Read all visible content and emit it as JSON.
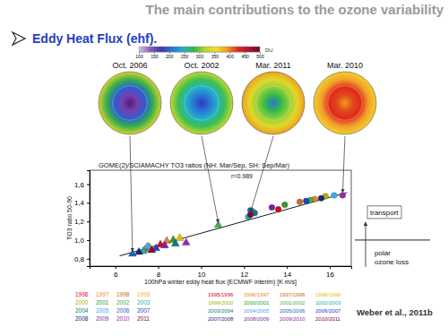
{
  "slide_title": "The main contributions to the ozone variability",
  "bullet": "Eddy Heat Flux (ehf).",
  "source": "Weber et al., 2011b",
  "colorbar": {
    "range": [
      100,
      500
    ],
    "ticks": [
      100,
      150,
      200,
      250,
      300,
      350,
      400,
      450,
      500
    ],
    "unit": "DU"
  },
  "maps": [
    {
      "label": "Oct. 2006",
      "target": [
        6.8,
        0.85
      ]
    },
    {
      "label": "Oct. 2002",
      "target": [
        10.8,
        1.16
      ]
    },
    {
      "label": "Mar. 2011",
      "target": [
        12.3,
        1.27
      ]
    },
    {
      "label": "Mar. 2010",
      "target": [
        16.6,
        1.48
      ]
    }
  ],
  "chart_data": {
    "type": "scatter",
    "title": "GOME(2)/SCIAMACHY TO3 ratios (NH: Mar/Sep, SH: Sep/Mar)",
    "subtitle": "r=0.989",
    "x_label": "100hPa winter eddy heat flux (ECMWF interim) [K m/s]",
    "y_label": "TO3 ratio 50-90",
    "xlim": [
      4.8,
      17
    ],
    "xticks": [
      6,
      8,
      10,
      12,
      14,
      16
    ],
    "ylim": [
      0.72,
      1.75
    ],
    "yticks": [
      {
        "value": 0.8,
        "label": "0,8"
      },
      {
        "value": 1.0,
        "label": "1,0"
      },
      {
        "value": 1.2,
        "label": "1,2"
      },
      {
        "value": 1.4,
        "label": "1,4"
      },
      {
        "value": 1.6,
        "label": "1,6"
      }
    ],
    "legend": "bottom",
    "reference_line": {
      "y": 1.0
    },
    "annotations": {
      "above": "transport",
      "below": [
        "polar",
        "ozone loss"
      ]
    },
    "series": [
      {
        "name": "1996",
        "color": "#e3001b",
        "marker": "triangle",
        "x": [
          8.1
        ],
        "values": [
          0.95
        ]
      },
      {
        "name": "1997",
        "color": "#f08030",
        "marker": "triangle",
        "x": [
          8.4
        ],
        "values": [
          0.99
        ]
      },
      {
        "name": "1998",
        "color": "#d2691e",
        "marker": "triangle",
        "x": [
          7.4
        ],
        "values": [
          0.9
        ]
      },
      {
        "name": "1999",
        "color": "#e8c000",
        "marker": "triangle",
        "x": [
          9.0
        ],
        "values": [
          1.02
        ]
      },
      {
        "name": "2000",
        "color": "#a8b400",
        "marker": "triangle",
        "x": [
          7.6
        ],
        "values": [
          0.92
        ]
      },
      {
        "name": "2001",
        "color": "#2e9e2e",
        "marker": "triangle",
        "x": [
          8.7
        ],
        "values": [
          1.0
        ]
      },
      {
        "name": "2002",
        "color": "#3cb44b",
        "marker": "triangle",
        "x": [
          10.8
        ],
        "values": [
          1.16
        ]
      },
      {
        "name": "2003",
        "color": "#20b2aa",
        "marker": "triangle",
        "x": [
          7.3
        ],
        "values": [
          0.88
        ]
      },
      {
        "name": "2004",
        "color": "#008080",
        "marker": "triangle",
        "x": [
          8.8
        ],
        "values": [
          0.96
        ]
      },
      {
        "name": "2005",
        "color": "#3fa9f5",
        "marker": "triangle",
        "x": [
          7.5
        ],
        "values": [
          0.93
        ]
      },
      {
        "name": "2006",
        "color": "#1e64c8",
        "marker": "triangle",
        "x": [
          6.8
        ],
        "values": [
          0.85
        ]
      },
      {
        "name": "2007",
        "color": "#2040d0",
        "marker": "triangle",
        "x": [
          7.9
        ],
        "values": [
          0.91
        ]
      },
      {
        "name": "2008",
        "color": "#1a237e",
        "marker": "triangle",
        "x": [
          7.1
        ],
        "values": [
          0.87
        ]
      },
      {
        "name": "2009",
        "color": "#7b1fa2",
        "marker": "triangle",
        "x": [
          8.3
        ],
        "values": [
          0.94
        ]
      },
      {
        "name": "2010",
        "color": "#9c27b0",
        "marker": "triangle",
        "x": [
          9.3
        ],
        "values": [
          0.97
        ]
      },
      {
        "name": "2011",
        "color": "#8b0045",
        "marker": "triangle",
        "x": [
          7.7
        ],
        "values": [
          0.89
        ]
      },
      {
        "name": "1995/1996",
        "color": "#e3001b",
        "marker": "circle",
        "x": [
          13.6
        ],
        "values": [
          1.33
        ]
      },
      {
        "name": "1996/1997",
        "color": "#f08030",
        "marker": "circle",
        "x": [
          15.3
        ],
        "values": [
          1.44
        ]
      },
      {
        "name": "1997/1998",
        "color": "#d2691e",
        "marker": "circle",
        "x": [
          14.6
        ],
        "values": [
          1.41
        ]
      },
      {
        "name": "1998/1999",
        "color": "#e8c000",
        "marker": "circle",
        "x": [
          12.4
        ],
        "values": [
          1.31
        ]
      },
      {
        "name": "1999/2000",
        "color": "#a8b400",
        "marker": "circle",
        "x": [
          15.8
        ],
        "values": [
          1.47
        ]
      },
      {
        "name": "2000/2001",
        "color": "#2e9e2e",
        "marker": "circle",
        "x": [
          13.9
        ],
        "values": [
          1.38
        ]
      },
      {
        "name": "2001/2002",
        "color": "#3cb44b",
        "marker": "circle",
        "x": [
          15.1
        ],
        "values": [
          1.43
        ]
      },
      {
        "name": "2002/2003",
        "color": "#20b2aa",
        "marker": "circle",
        "x": [
          12.2
        ],
        "values": [
          1.25
        ]
      },
      {
        "name": "2003/2004",
        "color": "#008080",
        "marker": "circle",
        "x": [
          12.5
        ],
        "values": [
          1.29
        ]
      },
      {
        "name": "2004/2005",
        "color": "#3fa9f5",
        "marker": "circle",
        "x": [
          16.2
        ],
        "values": [
          1.48
        ]
      },
      {
        "name": "2005/2006",
        "color": "#1e64c8",
        "marker": "circle",
        "x": [
          12.3
        ],
        "values": [
          1.32
        ]
      },
      {
        "name": "2006/2007",
        "color": "#2040d0",
        "marker": "circle",
        "x": [
          14.9
        ],
        "values": [
          1.42
        ]
      },
      {
        "name": "2007/2008",
        "color": "#1a237e",
        "marker": "circle",
        "x": [
          15.6
        ],
        "values": [
          1.45
        ]
      },
      {
        "name": "2008/2009",
        "color": "#7b1fa2",
        "marker": "circle",
        "x": [
          13.3
        ],
        "values": [
          1.35
        ]
      },
      {
        "name": "2009/2010",
        "color": "#9c27b0",
        "marker": "circle",
        "x": [
          16.6
        ],
        "values": [
          1.48
        ]
      },
      {
        "name": "2010/2011",
        "color": "#8b0045",
        "marker": "circle",
        "x": [
          12.3
        ],
        "values": [
          1.27
        ]
      },
      {
        "type": "line",
        "color": "#000000",
        "x": [
          6.2,
          16.8
        ],
        "values": [
          0.83,
          1.51
        ]
      }
    ]
  }
}
